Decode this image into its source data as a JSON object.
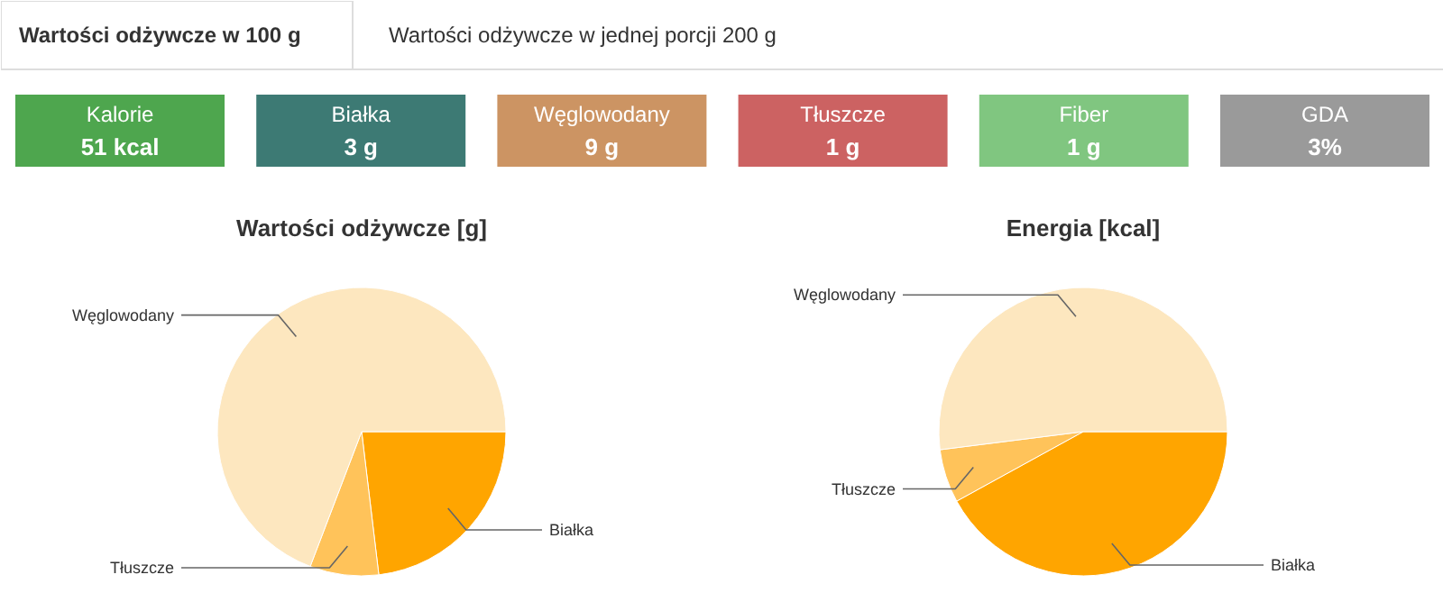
{
  "chart_data": [
    {
      "type": "other",
      "annotations": [
        "Wartości odżywcze w 100 g",
        "Wartości odżywcze w jednej porcji 200 g"
      ],
      "categories": [
        "Kalorie",
        "Białka",
        "Węglowodany",
        "Tłuszcze",
        "Fiber",
        "GDA"
      ],
      "value_labels": [
        "51 kcal",
        "3 g",
        "9 g",
        "1 g",
        "1 g",
        "3%"
      ],
      "colors": [
        "#4ea64e",
        "#3d7a74",
        "#cc9463",
        "#cc6262",
        "#80c680",
        "#9a9a9a"
      ]
    },
    {
      "type": "pie",
      "title": "Wartości odżywcze [g]",
      "categories": [
        "Białka",
        "Tłuszcze",
        "Węglowodany"
      ],
      "values": [
        23.1,
        7.7,
        69.2
      ],
      "colors": [
        "#ffa500",
        "#ffc35a",
        "#fde7bf"
      ]
    },
    {
      "type": "pie",
      "title": "Energia [kcal]",
      "categories": [
        "Białka",
        "Tłuszcze",
        "Węglowodany"
      ],
      "values": [
        42,
        6,
        52
      ],
      "colors": [
        "#ffa500",
        "#ffc35a",
        "#fde7bf"
      ]
    }
  ]
}
